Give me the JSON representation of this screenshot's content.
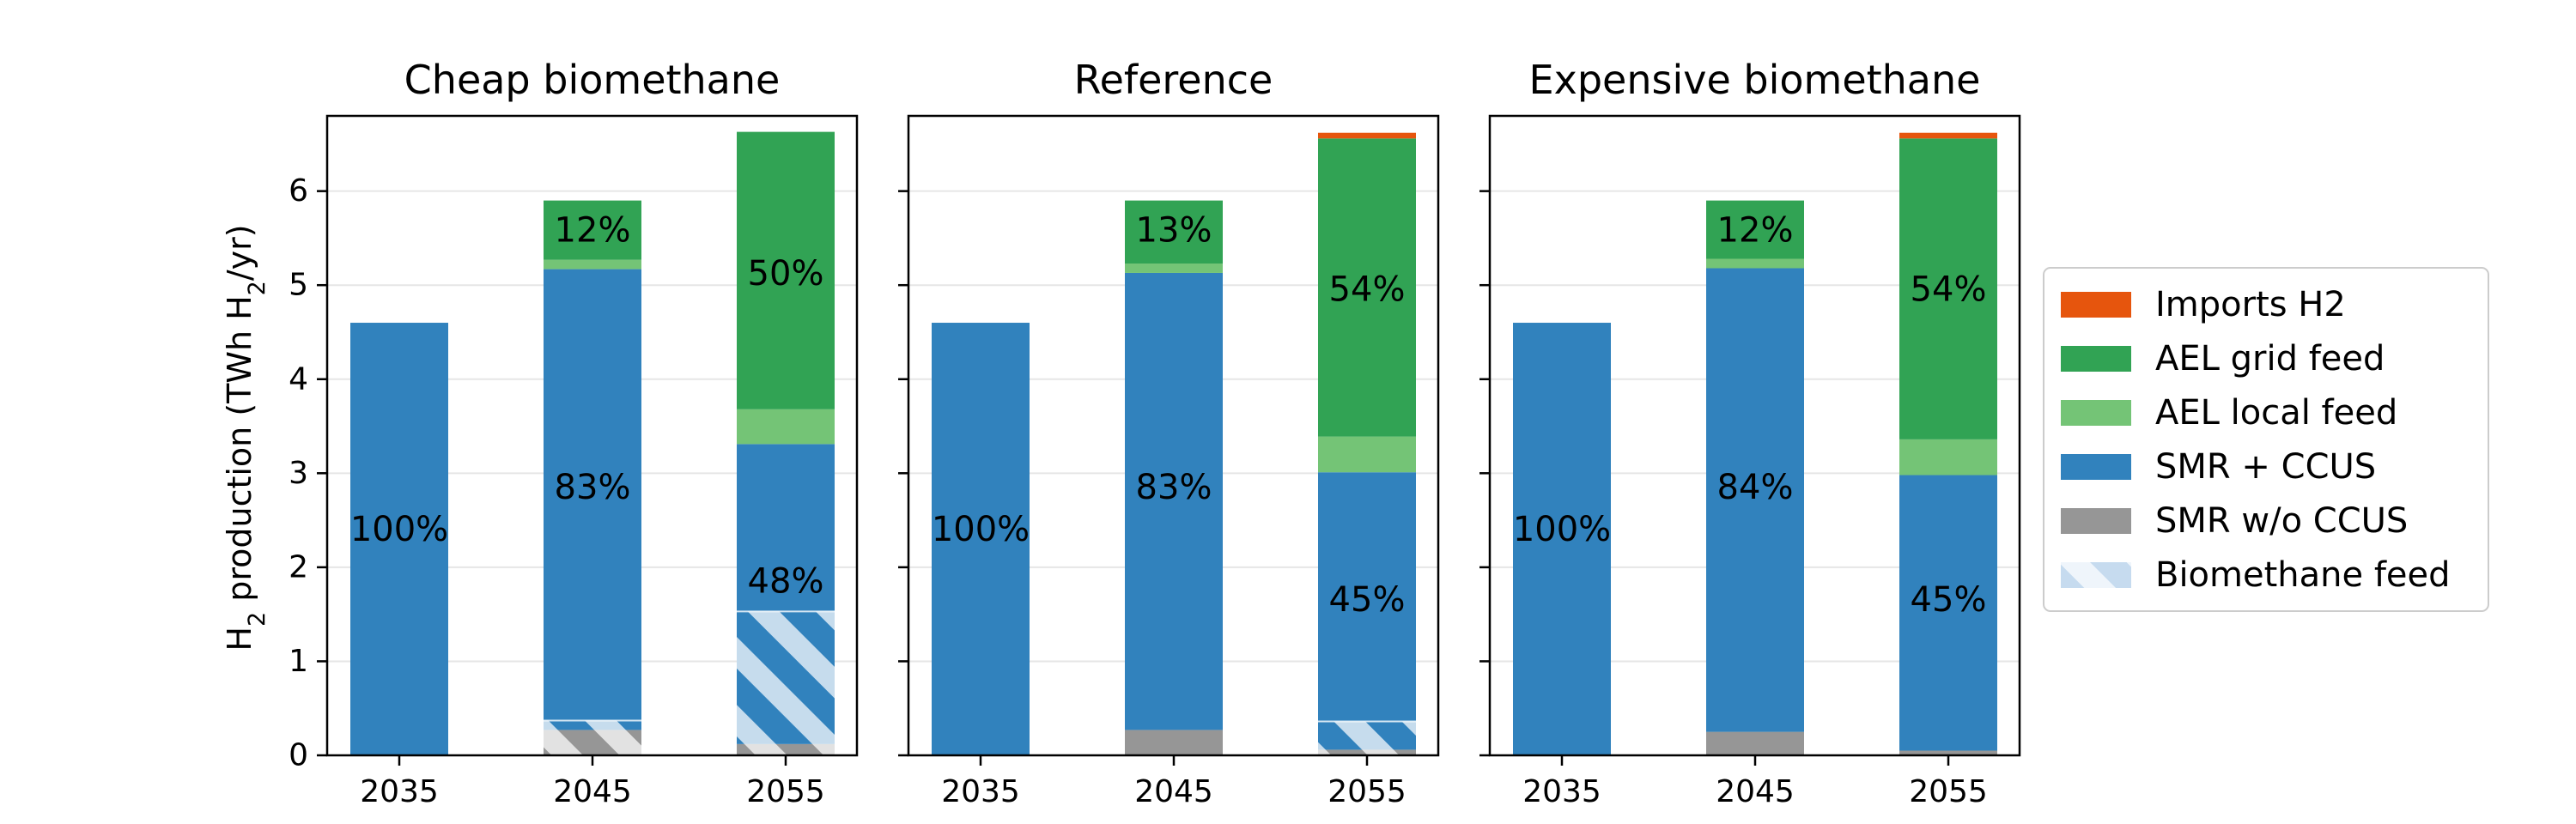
{
  "chart_data": {
    "type": "bar",
    "stacked": true,
    "ylabel": "H2 production  (TWh H2/yr)",
    "ylim": [
      0,
      6.8
    ],
    "yticks": [
      0,
      1,
      2,
      3,
      4,
      5,
      6
    ],
    "grid": "horizontal",
    "legend_position": "right",
    "categories": [
      "2035",
      "2045",
      "2055"
    ],
    "legend": [
      {
        "name": "Imports H2",
        "color": "#e6550d"
      },
      {
        "name": "AEL grid feed",
        "color": "#31a354"
      },
      {
        "name": "AEL local feed",
        "color": "#74c476"
      },
      {
        "name": "SMR + CCUS",
        "color": "#3182bd"
      },
      {
        "name": "SMR w/o CCUS",
        "color": "#969696"
      },
      {
        "name": "Biomethane feed",
        "color": "#c6dbef",
        "hatch": true
      }
    ],
    "panels": [
      {
        "title": "Cheap biomethane",
        "series": [
          {
            "name": "SMR w/o CCUS",
            "values": [
              0.0,
              0.27,
              0.12
            ]
          },
          {
            "name": "SMR + CCUS",
            "values": [
              4.6,
              4.9,
              3.19
            ]
          },
          {
            "name": "AEL local feed",
            "values": [
              0.0,
              0.1,
              0.37
            ]
          },
          {
            "name": "AEL grid feed",
            "values": [
              0.0,
              0.63,
              2.95
            ]
          },
          {
            "name": "Imports H2",
            "values": [
              0.0,
              0.0,
              0.0
            ]
          }
        ],
        "biomethane_feed": [
          0.0,
          0.37,
          1.53
        ],
        "labels": [
          {
            "category": "2035",
            "text": "100%",
            "y": 2.4
          },
          {
            "category": "2045",
            "text": "83%",
            "y": 2.85
          },
          {
            "category": "2045",
            "text": "12%",
            "y": 5.58
          },
          {
            "category": "2055",
            "text": "48%",
            "y": 1.85
          },
          {
            "category": "2055",
            "text": "50%",
            "y": 5.12
          }
        ]
      },
      {
        "title": "Reference",
        "series": [
          {
            "name": "SMR w/o CCUS",
            "values": [
              0.0,
              0.27,
              0.06
            ]
          },
          {
            "name": "SMR + CCUS",
            "values": [
              4.6,
              4.86,
              2.95
            ]
          },
          {
            "name": "AEL local feed",
            "values": [
              0.0,
              0.1,
              0.38
            ]
          },
          {
            "name": "AEL grid feed",
            "values": [
              0.0,
              0.67,
              3.17
            ]
          },
          {
            "name": "Imports H2",
            "values": [
              0.0,
              0.0,
              0.06
            ]
          }
        ],
        "biomethane_feed": [
          0.0,
          0.0,
          0.36
        ],
        "labels": [
          {
            "category": "2035",
            "text": "100%",
            "y": 2.4
          },
          {
            "category": "2045",
            "text": "83%",
            "y": 2.85
          },
          {
            "category": "2045",
            "text": "13%",
            "y": 5.58
          },
          {
            "category": "2055",
            "text": "45%",
            "y": 1.65
          },
          {
            "category": "2055",
            "text": "54%",
            "y": 4.95
          }
        ]
      },
      {
        "title": "Expensive biomethane",
        "series": [
          {
            "name": "SMR w/o CCUS",
            "values": [
              0.0,
              0.25,
              0.05
            ]
          },
          {
            "name": "SMR + CCUS",
            "values": [
              4.6,
              4.93,
              2.93
            ]
          },
          {
            "name": "AEL local feed",
            "values": [
              0.0,
              0.1,
              0.38
            ]
          },
          {
            "name": "AEL grid feed",
            "values": [
              0.0,
              0.62,
              3.2
            ]
          },
          {
            "name": "Imports H2",
            "values": [
              0.0,
              0.0,
              0.06
            ]
          }
        ],
        "biomethane_feed": [
          0.0,
          0.0,
          0.0
        ],
        "labels": [
          {
            "category": "2035",
            "text": "100%",
            "y": 2.4
          },
          {
            "category": "2045",
            "text": "84%",
            "y": 2.85
          },
          {
            "category": "2045",
            "text": "12%",
            "y": 5.58
          },
          {
            "category": "2055",
            "text": "45%",
            "y": 1.65
          },
          {
            "category": "2055",
            "text": "54%",
            "y": 4.95
          }
        ]
      }
    ]
  }
}
